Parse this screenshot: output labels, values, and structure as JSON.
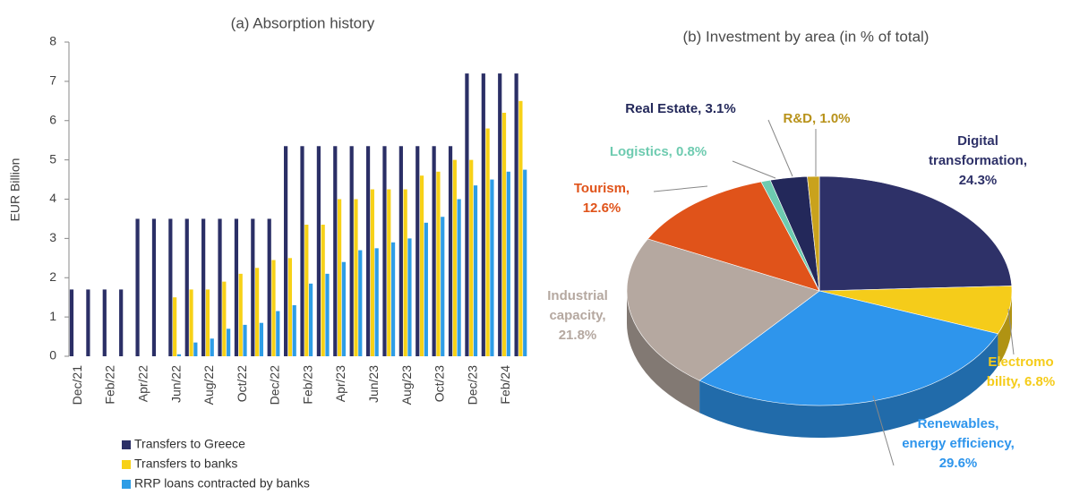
{
  "chart_data": [
    {
      "type": "bar",
      "title": "(a) Absorption history",
      "ylabel": "EUR  Billion",
      "categories": [
        "Dec/21",
        null,
        "Feb/22",
        null,
        "Apr/22",
        null,
        "Jun/22",
        null,
        "Aug/22",
        null,
        "Oct/22",
        null,
        "Dec/22",
        null,
        "Feb/23",
        null,
        "Apr/23",
        null,
        "Jun/23",
        null,
        "Aug/23",
        null,
        "Oct/23",
        null,
        "Dec/23",
        null,
        "Feb/24",
        null
      ],
      "series": [
        {
          "name": "Transfers to Greece",
          "color": "#2b2f66",
          "values": [
            1.7,
            1.7,
            1.7,
            1.7,
            3.5,
            3.5,
            3.5,
            3.5,
            3.5,
            3.5,
            3.5,
            3.5,
            3.5,
            5.35,
            5.35,
            5.35,
            5.35,
            5.35,
            5.35,
            5.35,
            5.35,
            5.35,
            5.35,
            5.35,
            7.2,
            7.2,
            7.2,
            7.2
          ]
        },
        {
          "name": "Transfers to banks",
          "color": "#f7d117",
          "values": [
            null,
            null,
            null,
            null,
            null,
            null,
            1.5,
            1.7,
            1.7,
            1.9,
            2.1,
            2.25,
            2.45,
            2.5,
            3.35,
            3.35,
            4.0,
            4.0,
            4.25,
            4.25,
            4.25,
            4.6,
            4.7,
            5.0,
            5.0,
            5.8,
            6.2,
            6.5
          ]
        },
        {
          "name": "RRP loans contracted by banks",
          "color": "#2e9de6",
          "values": [
            null,
            null,
            null,
            null,
            null,
            null,
            0.05,
            0.35,
            0.45,
            0.7,
            0.8,
            0.85,
            1.15,
            1.3,
            1.85,
            2.1,
            2.4,
            2.7,
            2.75,
            2.9,
            3.0,
            3.4,
            3.55,
            4.0,
            4.35,
            4.5,
            4.7,
            4.75
          ]
        }
      ],
      "ylim": [
        0,
        8
      ],
      "yticks": [
        0,
        1,
        2,
        3,
        4,
        5,
        6,
        7,
        8
      ],
      "grid": false
    },
    {
      "type": "pie",
      "title": "(b) Investment by area (in % of total)",
      "values": [
        24.3,
        6.8,
        29.6,
        21.8,
        12.6,
        0.8,
        3.1,
        1.0
      ],
      "value_labels": [
        [
          "Digital",
          "transformation,",
          "24.3%"
        ],
        [
          "Electromo",
          "bility, 6.8%"
        ],
        [
          "Renewables,",
          "energy efficiency,",
          "29.6%"
        ],
        [
          "Industrial",
          "capacity,",
          "21.8%"
        ],
        [
          "Tourism,",
          "12.6%"
        ],
        [
          "Logistics, 0.8%"
        ],
        [
          "Real Estate, 3.1%"
        ],
        [
          "R&D, 1.0%"
        ]
      ],
      "colors": [
        "#2e3168",
        "#f5cc1a",
        "#2e95ec",
        "#b5a8a0",
        "#e0531a",
        "#6ecbb0",
        "#23285a",
        "#c9a21c"
      ],
      "label_colors": [
        "#2e3168",
        "#f5cc1a",
        "#2e95ec",
        "#b5a8a0",
        "#e0531a",
        "#6ecbb0",
        "#23285a",
        "#b8921a"
      ]
    }
  ]
}
